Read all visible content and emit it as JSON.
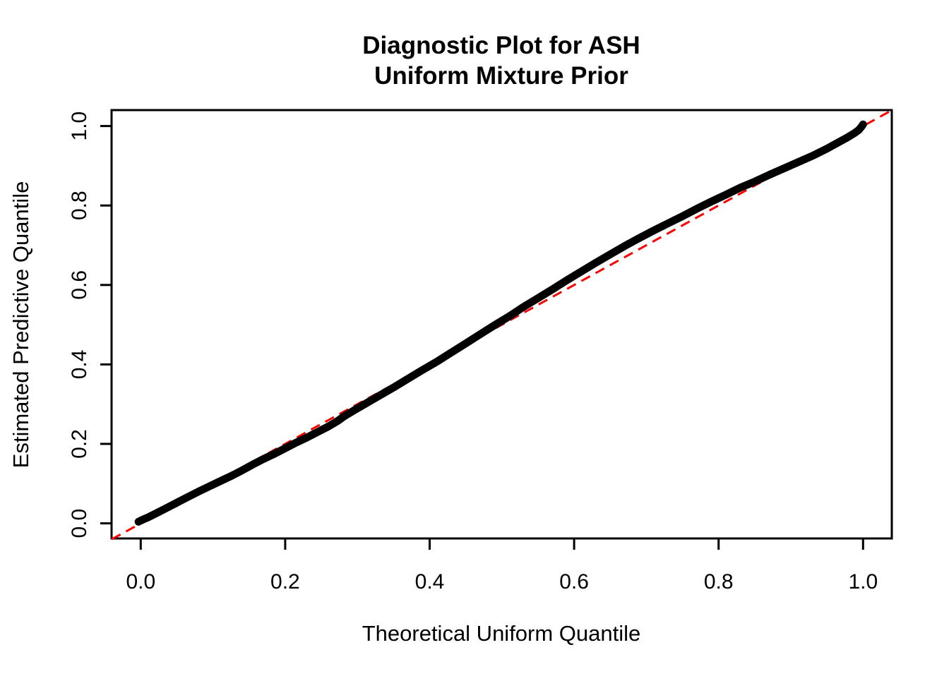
{
  "chart": {
    "title_line1": "Diagnostic Plot for ASH",
    "title_line2": "Uniform Mixture Prior",
    "xlabel": "Theoretical Uniform Quantile",
    "ylabel": "Estimated Predictive Quantile"
  },
  "colors": {
    "background": "#ffffff",
    "axis": "#000000",
    "curve": "#000000",
    "reference_line": "#ff0000"
  },
  "chart_data": {
    "type": "line",
    "title": "Diagnostic Plot for ASH\nUniform Mixture Prior",
    "xlabel": "Theoretical Uniform Quantile",
    "ylabel": "Estimated Predictive Quantile",
    "xlim": [
      -0.04,
      1.04
    ],
    "ylim": [
      -0.04,
      1.04
    ],
    "grid": false,
    "legend": "none",
    "x_ticks": [
      0.0,
      0.2,
      0.4,
      0.6,
      0.8,
      1.0
    ],
    "y_ticks": [
      0.0,
      0.2,
      0.4,
      0.6,
      0.8,
      1.0
    ],
    "x_tick_labels": [
      "0.0",
      "0.2",
      "0.4",
      "0.6",
      "0.8",
      "1.0"
    ],
    "y_tick_labels": [
      "0.0",
      "0.2",
      "0.4",
      "0.6",
      "0.8",
      "1.0"
    ],
    "series": [
      {
        "name": "estimated-vs-theoretical-quantiles",
        "style": "solid",
        "color": "#000000",
        "line_width": 11,
        "points": [
          [
            -0.003,
            0.004
          ],
          [
            0.0,
            0.007
          ],
          [
            0.005,
            0.011
          ],
          [
            0.01,
            0.015
          ],
          [
            0.02,
            0.024
          ],
          [
            0.035,
            0.038
          ],
          [
            0.05,
            0.052
          ],
          [
            0.065,
            0.066
          ],
          [
            0.08,
            0.08
          ],
          [
            0.095,
            0.093
          ],
          [
            0.11,
            0.106
          ],
          [
            0.125,
            0.119
          ],
          [
            0.14,
            0.133
          ],
          [
            0.155,
            0.148
          ],
          [
            0.17,
            0.162
          ],
          [
            0.185,
            0.175
          ],
          [
            0.2,
            0.189
          ],
          [
            0.215,
            0.203
          ],
          [
            0.23,
            0.216
          ],
          [
            0.245,
            0.23
          ],
          [
            0.26,
            0.244
          ],
          [
            0.272,
            0.257
          ],
          [
            0.282,
            0.27
          ],
          [
            0.295,
            0.284
          ],
          [
            0.31,
            0.3
          ],
          [
            0.33,
            0.321
          ],
          [
            0.35,
            0.342
          ],
          [
            0.37,
            0.364
          ],
          [
            0.39,
            0.386
          ],
          [
            0.41,
            0.407
          ],
          [
            0.43,
            0.43
          ],
          [
            0.45,
            0.453
          ],
          [
            0.47,
            0.476
          ],
          [
            0.49,
            0.499
          ],
          [
            0.51,
            0.521
          ],
          [
            0.53,
            0.545
          ],
          [
            0.55,
            0.567
          ],
          [
            0.57,
            0.589
          ],
          [
            0.59,
            0.612
          ],
          [
            0.61,
            0.634
          ],
          [
            0.63,
            0.656
          ],
          [
            0.65,
            0.677
          ],
          [
            0.67,
            0.698
          ],
          [
            0.69,
            0.718
          ],
          [
            0.71,
            0.737
          ],
          [
            0.73,
            0.755
          ],
          [
            0.75,
            0.773
          ],
          [
            0.77,
            0.792
          ],
          [
            0.79,
            0.81
          ],
          [
            0.81,
            0.827
          ],
          [
            0.83,
            0.845
          ],
          [
            0.85,
            0.86
          ],
          [
            0.87,
            0.877
          ],
          [
            0.89,
            0.893
          ],
          [
            0.91,
            0.909
          ],
          [
            0.93,
            0.925
          ],
          [
            0.95,
            0.943
          ],
          [
            0.965,
            0.958
          ],
          [
            0.978,
            0.971
          ],
          [
            0.988,
            0.982
          ],
          [
            0.994,
            0.99
          ],
          [
            0.998,
            0.999
          ],
          [
            1.0,
            1.004
          ]
        ]
      },
      {
        "name": "identity-reference-line",
        "style": "dashed",
        "color": "#ff0000",
        "line_width": 3,
        "points": [
          [
            -0.04,
            -0.04
          ],
          [
            1.04,
            1.04
          ]
        ]
      }
    ]
  }
}
